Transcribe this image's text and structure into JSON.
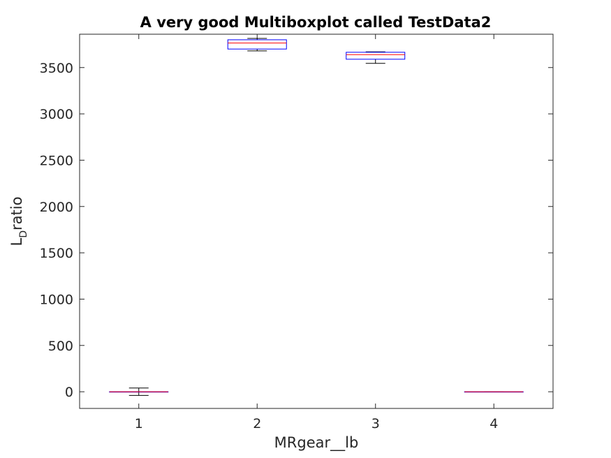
{
  "chart_data": {
    "type": "box",
    "title": "A very good Multiboxplot called TestData2",
    "xlabel": "MRgear__lb",
    "ylabel": "L",
    "ylabel_subscript": "D",
    "ylabel_suffix": "ratio",
    "categories": [
      "1",
      "2",
      "3",
      "4"
    ],
    "ylim": [
      -180,
      3860
    ],
    "yticks": [
      0,
      500,
      1000,
      1500,
      2000,
      2500,
      3000,
      3500
    ],
    "grid": false,
    "boxes": [
      {
        "category": "1",
        "whisker_low": -40,
        "q1": 0,
        "median": 0,
        "q3": 0,
        "whisker_high": 40
      },
      {
        "category": "2",
        "whisker_low": 3680,
        "q1": 3700,
        "median": 3765,
        "q3": 3800,
        "whisker_high": 3815
      },
      {
        "category": "3",
        "whisker_low": 3545,
        "q1": 3590,
        "median": 3640,
        "q3": 3665,
        "whisker_high": 3670
      },
      {
        "category": "4",
        "whisker_low": 0,
        "q1": 0,
        "median": 0,
        "q3": 0,
        "whisker_high": 0
      }
    ],
    "colors": {
      "box": "#0000ff",
      "whisker": "#000000",
      "median": "#ff0000",
      "axis": "#262626"
    }
  }
}
